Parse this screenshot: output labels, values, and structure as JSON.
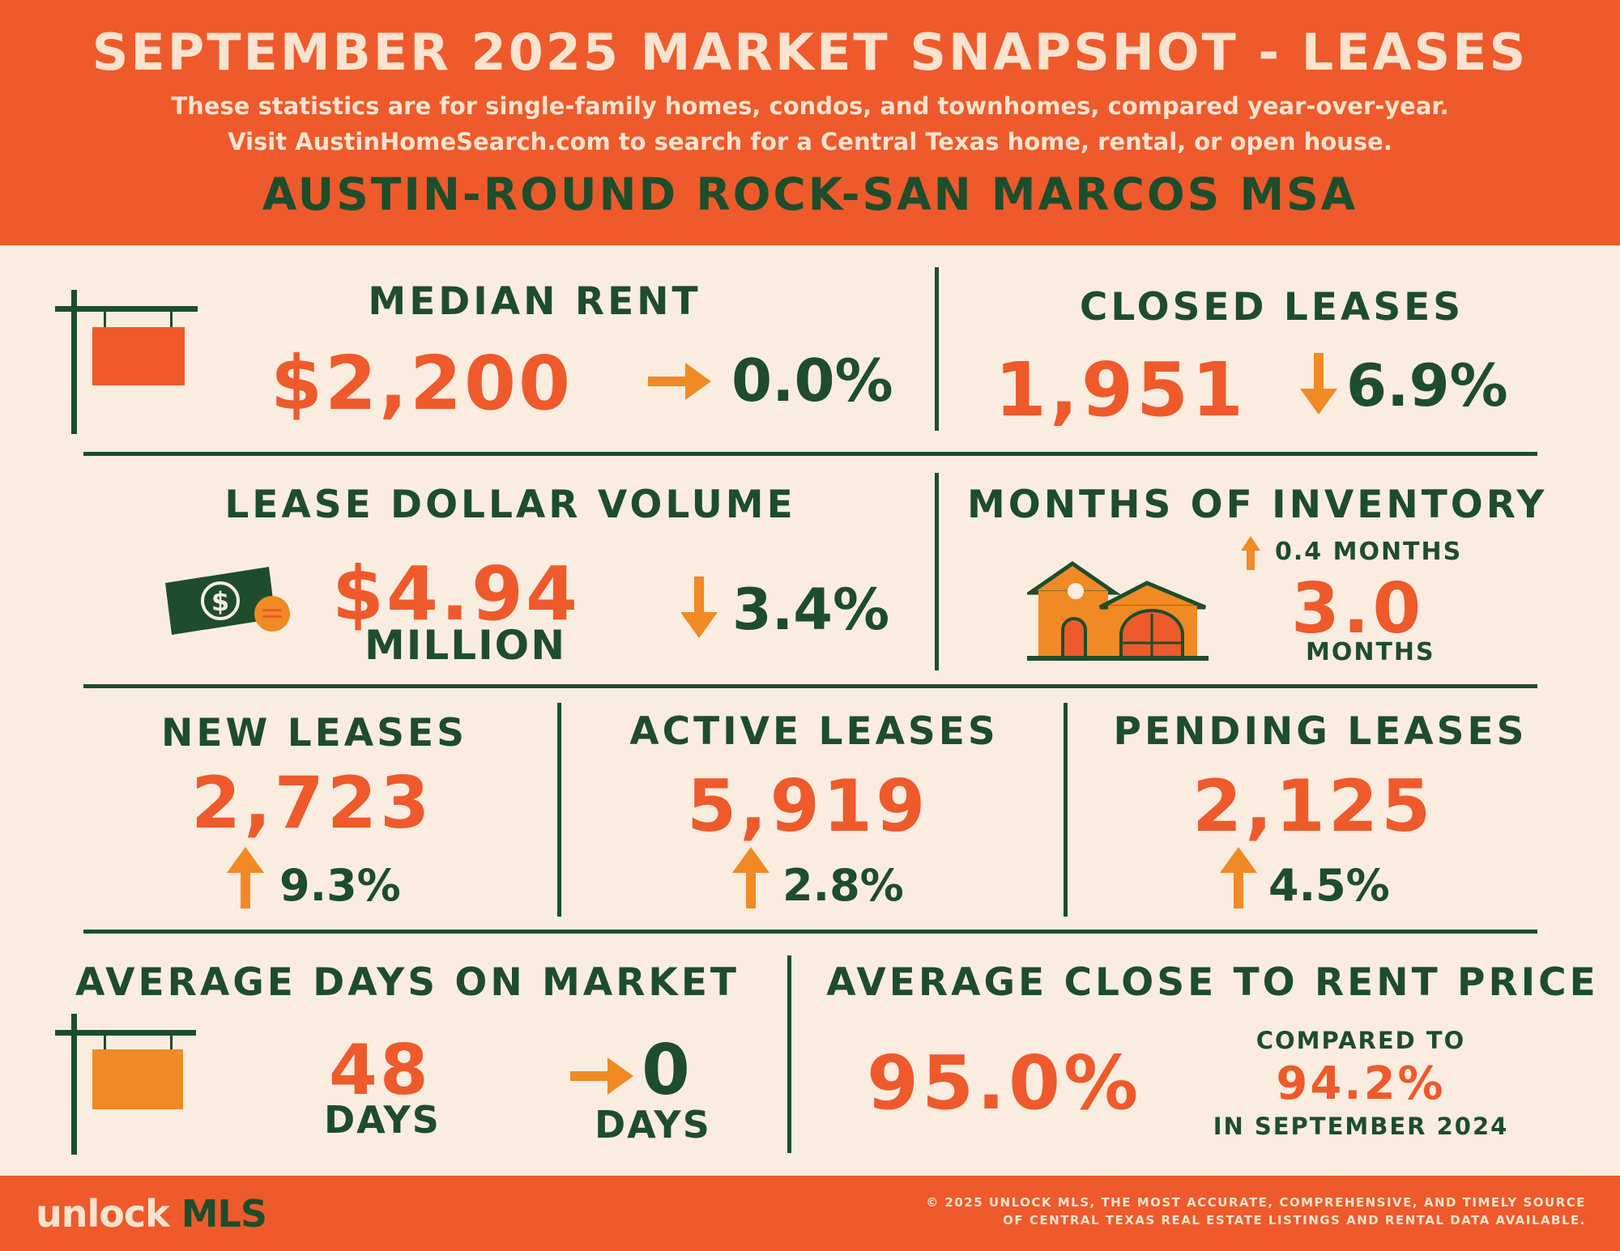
{
  "header": {
    "title": "SEPTEMBER 2025 MARKET SNAPSHOT - LEASES",
    "subtitle_line1": "These statistics are for single-family homes, condos, and townhomes, compared year-over-year.",
    "subtitle_line2": "Visit AustinHomeSearch.com to search for a Central Texas home, rental, or open house.",
    "region": "AUSTIN-ROUND ROCK-SAN MARCOS MSA"
  },
  "median_rent": {
    "label": "MEDIAN RENT",
    "value": "$2,200",
    "change": "0.0%",
    "direction": "flat"
  },
  "closed_leases": {
    "label": "CLOSED LEASES",
    "value": "1,951",
    "change": "6.9%",
    "direction": "down"
  },
  "lease_dollar_volume": {
    "label": "LEASE DOLLAR VOLUME",
    "value": "$4.94",
    "unit": "MILLION",
    "change": "3.4%",
    "direction": "down"
  },
  "months_of_inventory": {
    "label": "MONTHS OF INVENTORY",
    "change": "0.4  MONTHS",
    "direction": "up",
    "value": "3.0",
    "unit": "MONTHS"
  },
  "new_leases": {
    "label": "NEW LEASES",
    "value": "2,723",
    "change": "9.3%",
    "direction": "up"
  },
  "active_leases": {
    "label": "ACTIVE LEASES",
    "value": "5,919",
    "change": "2.8%",
    "direction": "up"
  },
  "pending_leases": {
    "label": "PENDING LEASES",
    "value": "2,125",
    "change": "4.5%",
    "direction": "up"
  },
  "avg_days_on_market": {
    "label": "AVERAGE DAYS ON MARKET",
    "value": "48",
    "unit": "DAYS",
    "change": "0",
    "change_unit": "DAYS",
    "direction": "flat"
  },
  "avg_close_to_rent": {
    "label": "AVERAGE CLOSE TO RENT PRICE",
    "value": "95.0%",
    "compare_label": "COMPARED TO",
    "compare_value": "94.2%",
    "compare_period": "IN SEPTEMBER 2024"
  },
  "footer": {
    "logo_word": "unlock",
    "logo_brand": "MLS",
    "copyright_line1": "© 2025 UNLOCK MLS, THE MOST ACCURATE, COMPREHENSIVE, AND TIMELY SOURCE",
    "copyright_line2": "OF CENTRAL TEXAS REAL ESTATE LISTINGS AND RENTAL DATA AVAILABLE."
  },
  "colors": {
    "orange": "#ee5a2b",
    "light_orange": "#f08a24",
    "green": "#1e4d2b",
    "cream": "#fbece0"
  },
  "icons": [
    "hanging-sign-icon",
    "money-bill-icon",
    "house-icon",
    "arrow-right-icon",
    "arrow-down-icon",
    "arrow-up-icon"
  ]
}
